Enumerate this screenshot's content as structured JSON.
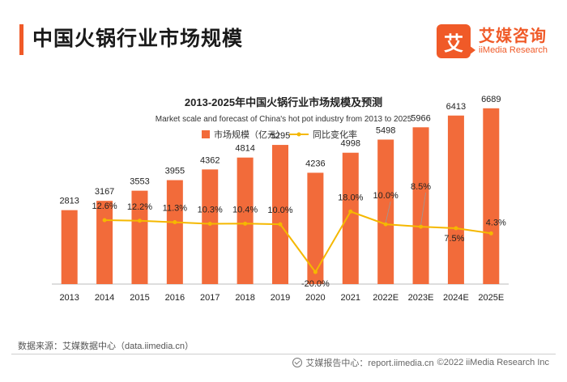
{
  "header": {
    "title": "中国火锅行业市场规模",
    "brand_cn": "艾媒咨询",
    "brand_en": "iiMedia Research",
    "brand_glyph": "艾",
    "accent_color": "#f05a28"
  },
  "chart_data": {
    "type": "bar",
    "title": "2013-2025年中国火锅行业市场规模及预测",
    "subtitle": "Market scale and forecast of China's hot pot industry from 2013 to 2025",
    "categories": [
      "2013",
      "2014",
      "2015",
      "2016",
      "2017",
      "2018",
      "2019",
      "2020",
      "2021",
      "2022E",
      "2023E",
      "2024E",
      "2025E"
    ],
    "series": [
      {
        "name": "市场规模（亿元）",
        "type": "bar",
        "color": "#f26b3a",
        "values": [
          2813,
          3167,
          3553,
          3955,
          4362,
          4814,
          5295,
          4236,
          4998,
          5498,
          5966,
          6413,
          6689
        ],
        "labels": [
          "2813",
          "3167",
          "3553",
          "3955",
          "4362",
          "4814",
          "5295",
          "4236",
          "4998",
          "5498",
          "5966",
          "6413",
          "6689"
        ]
      },
      {
        "name": "同比变化率",
        "type": "line",
        "color": "#f5b800",
        "values": [
          null,
          12.6,
          12.2,
          11.3,
          10.3,
          10.4,
          10.0,
          -20.0,
          18.0,
          10.0,
          8.5,
          7.5,
          4.3
        ],
        "labels": [
          "",
          "12.6%",
          "12.2%",
          "11.3%",
          "10.3%",
          "10.4%",
          "10.0%",
          "-20.0%",
          "18.0%",
          "10.0%",
          "8.5%",
          "7.5%",
          "4.3%"
        ]
      }
    ],
    "bar_ylim": [
      0,
      8500
    ],
    "line_ylim": [
      -25,
      100
    ],
    "legend_position": "top-center",
    "grid": false
  },
  "footer": {
    "source": "数据来源：艾媒数据中心（data.iimedia.cn）",
    "report_center": "艾媒报告中心：report.iimedia.cn",
    "copyright": "©2022  iiMedia Research  Inc"
  }
}
